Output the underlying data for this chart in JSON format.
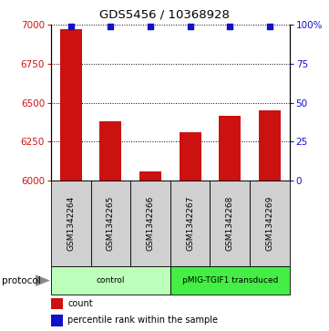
{
  "title": "GDS5456 / 10368928",
  "samples": [
    "GSM1342264",
    "GSM1342265",
    "GSM1342266",
    "GSM1342267",
    "GSM1342268",
    "GSM1342269"
  ],
  "counts": [
    6970,
    6380,
    6060,
    6310,
    6415,
    6450
  ],
  "percentiles": [
    99,
    99,
    99,
    99,
    99,
    99
  ],
  "ylim_left": [
    6000,
    7000
  ],
  "ylim_right": [
    0,
    100
  ],
  "yticks_left": [
    6000,
    6250,
    6500,
    6750,
    7000
  ],
  "yticks_right": [
    0,
    25,
    50,
    75,
    100
  ],
  "ytick_labels_right": [
    "0",
    "25",
    "50",
    "75",
    "100%"
  ],
  "bar_color": "#cc1111",
  "scatter_color": "#1111cc",
  "protocol_groups": [
    {
      "label": "control",
      "indices": [
        0,
        1,
        2
      ],
      "color": "#bbffbb"
    },
    {
      "label": "pMIG-TGIF1 transduced",
      "indices": [
        3,
        4,
        5
      ],
      "color": "#44ee44"
    }
  ],
  "legend_count_label": "count",
  "legend_pct_label": "percentile rank within the sample",
  "protocol_label": "protocol"
}
